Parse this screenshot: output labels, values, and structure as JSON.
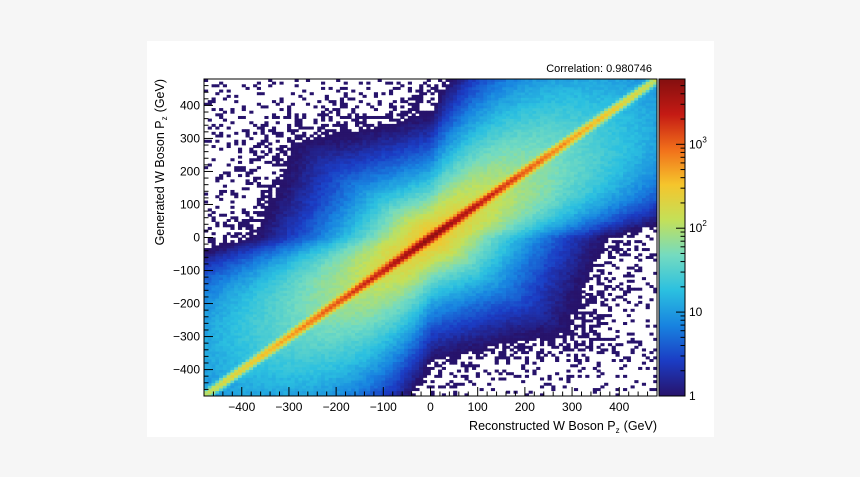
{
  "chart_data": {
    "type": "heatmap",
    "title": "",
    "annotation": "Correlation: 0.980746",
    "xlabel": "Reconstructed W Boson P",
    "xlabel_sub": "z",
    "xlabel_unit": "(GeV)",
    "ylabel": "Generated W Boson P",
    "ylabel_sub": "z",
    "ylabel_unit": "(GeV)",
    "xlim": [
      -480,
      480
    ],
    "ylim": [
      -480,
      480
    ],
    "x_ticks": [
      -400,
      -300,
      -200,
      -100,
      0,
      100,
      200,
      300,
      400
    ],
    "x_tick_labels": [
      "−400",
      "−300",
      "−200",
      "−100",
      "0",
      "100",
      "200",
      "300",
      "400"
    ],
    "y_ticks": [
      -400,
      -300,
      -200,
      -100,
      0,
      100,
      200,
      300,
      400
    ],
    "y_tick_labels": [
      "−400",
      "−300",
      "−200",
      "−100",
      "0",
      "100",
      "200",
      "300",
      "400"
    ],
    "z_scale": "log",
    "zlim": [
      1,
      6000
    ],
    "z_ticks": [
      {
        "value": 1,
        "label": "1",
        "exp": ""
      },
      {
        "value": 10,
        "label": "10",
        "exp": ""
      },
      {
        "value": 100,
        "label": "10",
        "exp": "2"
      },
      {
        "value": 1000,
        "label": "10",
        "exp": "3"
      }
    ],
    "correlation": 0.980746,
    "colormap": [
      "#27136b",
      "#1b3cc4",
      "#1883e0",
      "#2bc0e0",
      "#74dbc0",
      "#c4e058",
      "#f5c52c",
      "#f16f1a",
      "#c41a14",
      "#840f0f"
    ],
    "grid": false,
    "legend": "colorbar-right"
  }
}
